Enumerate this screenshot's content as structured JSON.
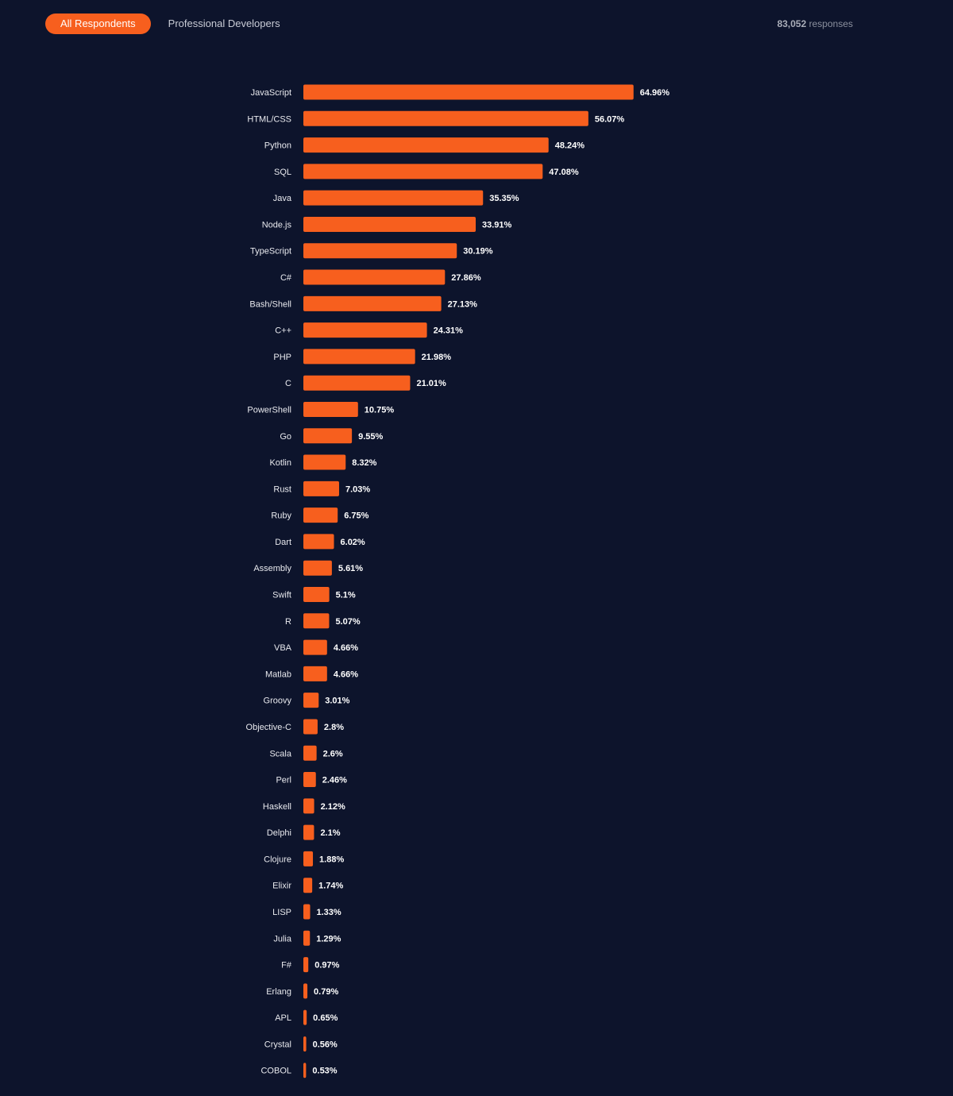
{
  "header": {
    "tabs": [
      {
        "label": "All Respondents",
        "active": true
      },
      {
        "label": "Professional Developers",
        "active": false
      }
    ],
    "responses_count": "83,052",
    "responses_label": "responses"
  },
  "colors": {
    "background": "#0d142c",
    "bar": "#f75f1e",
    "label": "#e8e9ee",
    "value": "#ffffff"
  },
  "chart_data": {
    "type": "bar",
    "orientation": "horizontal",
    "title": "",
    "xlabel": "",
    "ylabel": "",
    "xlim": [
      0,
      100
    ],
    "grid": false,
    "value_unit": "%",
    "categories": [
      "JavaScript",
      "HTML/CSS",
      "Python",
      "SQL",
      "Java",
      "Node.js",
      "TypeScript",
      "C#",
      "Bash/Shell",
      "C++",
      "PHP",
      "C",
      "PowerShell",
      "Go",
      "Kotlin",
      "Rust",
      "Ruby",
      "Dart",
      "Assembly",
      "Swift",
      "R",
      "VBA",
      "Matlab",
      "Groovy",
      "Objective-C",
      "Scala",
      "Perl",
      "Haskell",
      "Delphi",
      "Clojure",
      "Elixir",
      "LISP",
      "Julia",
      "F#",
      "Erlang",
      "APL",
      "Crystal",
      "COBOL"
    ],
    "values": [
      64.96,
      56.07,
      48.24,
      47.08,
      35.35,
      33.91,
      30.19,
      27.86,
      27.13,
      24.31,
      21.98,
      21.01,
      10.75,
      9.55,
      8.32,
      7.03,
      6.75,
      6.02,
      5.61,
      5.1,
      5.07,
      4.66,
      4.66,
      3.01,
      2.8,
      2.6,
      2.46,
      2.12,
      2.1,
      1.88,
      1.74,
      1.33,
      1.29,
      0.97,
      0.79,
      0.65,
      0.56,
      0.53
    ],
    "value_labels": [
      "64.96%",
      "56.07%",
      "48.24%",
      "47.08%",
      "35.35%",
      "33.91%",
      "30.19%",
      "27.86%",
      "27.13%",
      "24.31%",
      "21.98%",
      "21.01%",
      "10.75%",
      "9.55%",
      "8.32%",
      "7.03%",
      "6.75%",
      "6.02%",
      "5.61%",
      "5.1%",
      "5.07%",
      "4.66%",
      "4.66%",
      "3.01%",
      "2.8%",
      "2.6%",
      "2.46%",
      "2.12%",
      "2.1%",
      "1.88%",
      "1.74%",
      "1.33%",
      "1.29%",
      "0.97%",
      "0.79%",
      "0.65%",
      "0.56%",
      "0.53%"
    ]
  }
}
